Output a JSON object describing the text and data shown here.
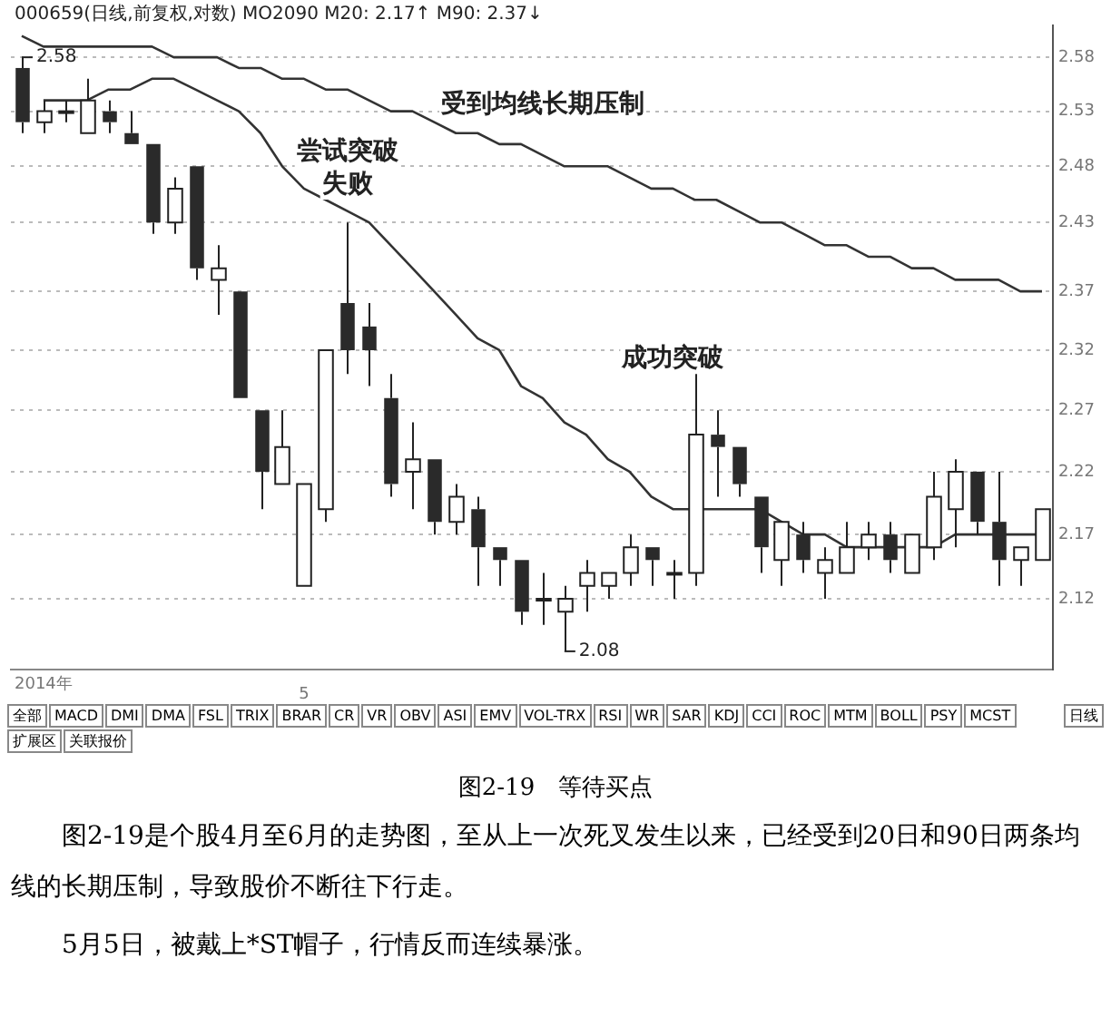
{
  "chart_data": {
    "type": "candlestick",
    "title": "图2-19　等待买点",
    "categories": [
      null,
      null,
      null,
      null,
      null,
      null,
      null,
      null,
      null,
      null,
      null,
      null,
      null,
      "5",
      null,
      null,
      null,
      null,
      null,
      null,
      null,
      null,
      null,
      null,
      null,
      null,
      null,
      null,
      null,
      null,
      null,
      null,
      null,
      null,
      null,
      null,
      null,
      null,
      null,
      null,
      null,
      null,
      null,
      null,
      null,
      null,
      null,
      null
    ],
    "ohlc": [
      [
        2.57,
        2.58,
        2.51,
        2.52
      ],
      [
        2.52,
        2.54,
        2.51,
        2.53
      ],
      [
        2.53,
        2.54,
        2.52,
        2.53
      ],
      [
        2.51,
        2.56,
        2.51,
        2.54
      ],
      [
        2.53,
        2.54,
        2.51,
        2.52
      ],
      [
        2.51,
        2.53,
        2.5,
        2.5
      ],
      [
        2.5,
        2.5,
        2.42,
        2.43
      ],
      [
        2.43,
        2.47,
        2.42,
        2.46
      ],
      [
        2.48,
        2.48,
        2.38,
        2.39
      ],
      [
        2.38,
        2.41,
        2.35,
        2.39
      ],
      [
        2.37,
        2.37,
        2.28,
        2.28
      ],
      [
        2.27,
        2.27,
        2.19,
        2.22
      ],
      [
        2.21,
        2.27,
        2.21,
        2.24
      ],
      [
        2.13,
        2.21,
        2.13,
        2.21
      ],
      [
        2.19,
        2.32,
        2.18,
        2.32
      ],
      [
        2.36,
        2.43,
        2.3,
        2.32
      ],
      [
        2.34,
        2.36,
        2.29,
        2.32
      ],
      [
        2.28,
        2.3,
        2.2,
        2.21
      ],
      [
        2.22,
        2.26,
        2.19,
        2.23
      ],
      [
        2.23,
        2.23,
        2.17,
        2.18
      ],
      [
        2.18,
        2.21,
        2.17,
        2.2
      ],
      [
        2.19,
        2.2,
        2.13,
        2.16
      ],
      [
        2.16,
        2.16,
        2.13,
        2.15
      ],
      [
        2.15,
        2.15,
        2.1,
        2.11
      ],
      [
        2.12,
        2.14,
        2.1,
        2.12
      ],
      [
        2.11,
        2.13,
        2.08,
        2.12
      ],
      [
        2.13,
        2.15,
        2.11,
        2.14
      ],
      [
        2.13,
        2.14,
        2.12,
        2.14
      ],
      [
        2.14,
        2.17,
        2.13,
        2.16
      ],
      [
        2.16,
        2.16,
        2.13,
        2.15
      ],
      [
        2.14,
        2.15,
        2.12,
        2.14
      ],
      [
        2.14,
        2.3,
        2.13,
        2.25
      ],
      [
        2.25,
        2.27,
        2.2,
        2.24
      ],
      [
        2.24,
        2.24,
        2.2,
        2.21
      ],
      [
        2.2,
        2.2,
        2.14,
        2.16
      ],
      [
        2.15,
        2.18,
        2.13,
        2.18
      ],
      [
        2.17,
        2.18,
        2.14,
        2.15
      ],
      [
        2.14,
        2.16,
        2.12,
        2.15
      ],
      [
        2.14,
        2.18,
        2.14,
        2.16
      ],
      [
        2.16,
        2.18,
        2.15,
        2.17
      ],
      [
        2.17,
        2.18,
        2.14,
        2.15
      ],
      [
        2.14,
        2.17,
        2.14,
        2.17
      ],
      [
        2.16,
        2.22,
        2.15,
        2.2
      ],
      [
        2.19,
        2.23,
        2.16,
        2.22
      ],
      [
        2.22,
        2.22,
        2.17,
        2.18
      ],
      [
        2.18,
        2.22,
        2.13,
        2.15
      ],
      [
        2.15,
        2.16,
        2.13,
        2.16
      ],
      [
        2.15,
        2.19,
        2.15,
        2.19
      ]
    ],
    "series": [
      {
        "type": "line",
        "color": "#333333",
        "values": [
          null,
          2.54,
          2.54,
          2.54,
          2.55,
          2.55,
          2.56,
          2.56,
          2.55,
          2.54,
          2.53,
          2.51,
          2.48,
          2.46,
          2.45,
          2.44,
          2.43,
          2.41,
          2.39,
          2.37,
          2.35,
          2.33,
          2.32,
          2.29,
          2.28,
          2.26,
          2.25,
          2.23,
          2.22,
          2.2,
          2.19,
          2.19,
          2.19,
          2.19,
          2.19,
          2.18,
          2.17,
          2.17,
          2.16,
          2.16,
          2.16,
          2.16,
          2.16,
          2.17,
          2.17,
          2.17,
          2.17,
          2.17
        ]
      },
      {
        "type": "line",
        "color": "#333333",
        "values": [
          2.6,
          2.59,
          2.59,
          2.59,
          2.59,
          2.59,
          2.59,
          2.58,
          2.58,
          2.58,
          2.57,
          2.57,
          2.56,
          2.56,
          2.55,
          2.55,
          2.54,
          2.53,
          2.53,
          2.52,
          2.51,
          2.51,
          2.5,
          2.5,
          2.49,
          2.48,
          2.48,
          2.48,
          2.47,
          2.46,
          2.46,
          2.45,
          2.45,
          2.44,
          2.43,
          2.43,
          2.42,
          2.41,
          2.41,
          2.4,
          2.4,
          2.39,
          2.39,
          2.38,
          2.38,
          2.38,
          2.37,
          2.37
        ]
      }
    ],
    "ylim": [
      2.066,
      2.61
    ],
    "yticks": [
      2.12,
      2.17,
      2.22,
      2.27,
      2.32,
      2.37,
      2.43,
      2.48,
      2.53,
      2.58
    ],
    "log": true,
    "grid": "y",
    "marker": "none",
    "line_style": "solid",
    "legend": false,
    "annotations": [
      "000659(日线,前复权,对数) MO2090 M20: 2.17↑ M90: 2.37↓",
      "受到均线长期压制",
      "尝试突破失败",
      "成功突破",
      "2.58",
      "2.08",
      "2014年",
      "全部",
      "MACD",
      "DMI",
      "DMA",
      "FSL",
      "TRIX",
      "BRAR",
      "CR",
      "VR",
      "OBV",
      "ASI",
      "EMV",
      "VOL-TRX",
      "RSI",
      "WR",
      "SAR",
      "KDJ",
      "CCI",
      "ROC",
      "MTM",
      "BOLL",
      "PSY",
      "MCST",
      "扩展区",
      "关联报价",
      "日线",
      "图2-19是个股4月至6月的走势图，至从上一次死叉发生以来，已经受到20日和90日两条均线的长期压制，导致股价不断往下行走。",
      "5月5日，被戴上*ST帽子，行情反而连续暴涨。"
    ]
  }
}
